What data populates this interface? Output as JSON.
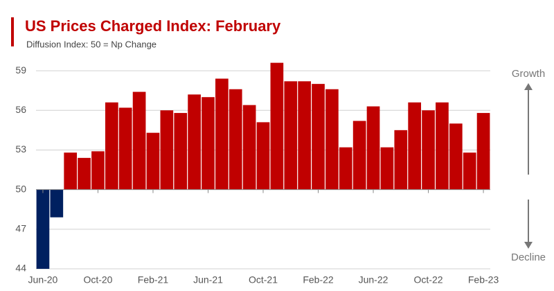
{
  "chart_data": {
    "type": "bar",
    "title": "US Prices Charged Index: February",
    "subtitle": "Diffusion Index: 50 = Np Change",
    "categories": [
      "Jun-20",
      null,
      null,
      null,
      "Oct-20",
      null,
      null,
      null,
      "Feb-21",
      null,
      null,
      null,
      "Jun-21",
      null,
      null,
      null,
      "Oct-21",
      null,
      null,
      null,
      "Feb-22",
      null,
      null,
      null,
      "Jun-22",
      null,
      null,
      null,
      "Oct-22",
      null,
      null,
      null,
      "Feb-23"
    ],
    "values": [
      44.0,
      47.9,
      52.8,
      52.4,
      52.9,
      56.6,
      56.2,
      57.4,
      54.3,
      56.0,
      55.8,
      57.2,
      57.0,
      58.4,
      57.6,
      56.4,
      55.1,
      59.6,
      58.2,
      58.2,
      58.0,
      57.6,
      53.2,
      55.2,
      56.3,
      53.2,
      54.5,
      56.6,
      56.0,
      56.6,
      55.0,
      52.8,
      55.8
    ],
    "base": 50,
    "color_above": "#c00000",
    "color_below": "#002060",
    "ylim": [
      44,
      60
    ],
    "yticks": [
      44,
      47,
      50,
      53,
      56,
      59
    ],
    "grid": true,
    "annotations": [
      "Growth",
      "Decline"
    ]
  }
}
